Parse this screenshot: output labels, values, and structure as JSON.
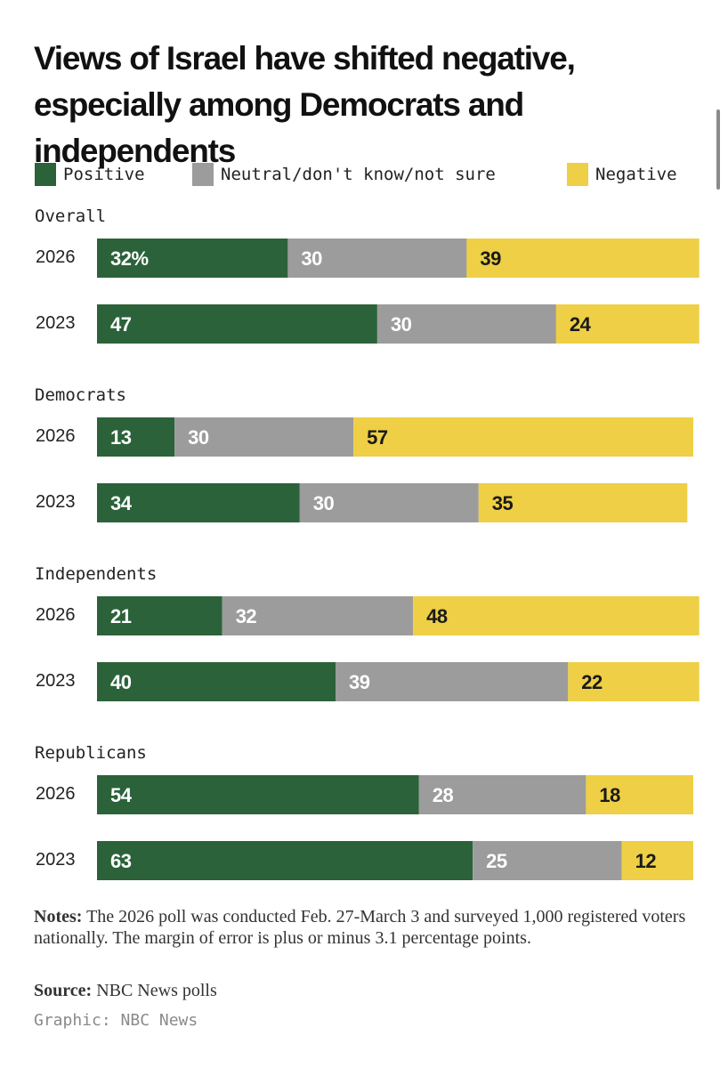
{
  "colors": {
    "positive": "#2b623a",
    "neutral": "#9c9c9c",
    "negative": "#eecf45",
    "label_light": "#ffffff",
    "label_dark": "#1a1a1a"
  },
  "chart_data": {
    "type": "bar",
    "orientation": "horizontal-stacked",
    "title": "Views of Israel have shifted negative, especially among Democrats and independents",
    "legend": [
      {
        "key": "positive",
        "label": "Positive"
      },
      {
        "key": "neutral",
        "label": "Neutral/don't know/not sure"
      },
      {
        "key": "negative",
        "label": "Negative"
      }
    ],
    "groups": [
      {
        "label": "Overall",
        "rows": [
          {
            "year": "2026",
            "values": [
              32,
              30,
              39
            ],
            "labels": [
              "32%",
              "30",
              "39"
            ]
          },
          {
            "year": "2023",
            "values": [
              47,
              30,
              24
            ],
            "labels": [
              "47",
              "30",
              "24"
            ]
          }
        ]
      },
      {
        "label": "Democrats",
        "rows": [
          {
            "year": "2026",
            "values": [
              13,
              30,
              57
            ],
            "labels": [
              "13",
              "30",
              "57"
            ]
          },
          {
            "year": "2023",
            "values": [
              34,
              30,
              35
            ],
            "labels": [
              "34",
              "30",
              "35"
            ]
          }
        ]
      },
      {
        "label": "Independents",
        "rows": [
          {
            "year": "2026",
            "values": [
              21,
              32,
              48
            ],
            "labels": [
              "21",
              "32",
              "48"
            ]
          },
          {
            "year": "2023",
            "values": [
              40,
              39,
              22
            ],
            "labels": [
              "40",
              "39",
              "22"
            ]
          }
        ]
      },
      {
        "label": "Republicans",
        "rows": [
          {
            "year": "2026",
            "values": [
              54,
              28,
              18
            ],
            "labels": [
              "54",
              "28",
              "18"
            ]
          },
          {
            "year": "2023",
            "values": [
              63,
              25,
              12
            ],
            "labels": [
              "63",
              "25",
              "12"
            ]
          }
        ]
      }
    ]
  },
  "notes": {
    "label": "Notes:",
    "text": "The 2026 poll was conducted Feb. 27-March 3 and surveyed 1,000 registered voters nationally. The margin of error is plus or minus 3.1 percentage points."
  },
  "source": {
    "label": "Source:",
    "text": "NBC News polls"
  },
  "credit": "Graphic: NBC News"
}
